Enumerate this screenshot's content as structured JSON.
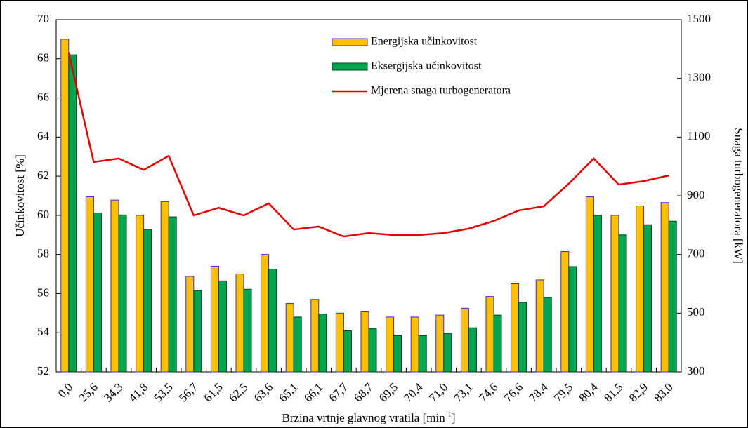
{
  "chart_data": {
    "type": "bar_line",
    "categories": [
      "0,0",
      "25,6",
      "34,3",
      "41,8",
      "53,5",
      "56,7",
      "61,5",
      "62,5",
      "63,6",
      "65,1",
      "66,1",
      "67,7",
      "68,7",
      "69,5",
      "70,4",
      "71,0",
      "73,1",
      "74,6",
      "76,6",
      "78,4",
      "79,5",
      "80,4",
      "81,5",
      "82,9",
      "83,0"
    ],
    "series": [
      {
        "name": "Energijska učinkovitost",
        "type": "bar",
        "color": "#ffc000",
        "edge": "#3333cc",
        "values": [
          69.0,
          60.95,
          60.78,
          60.0,
          60.7,
          56.88,
          57.4,
          57.0,
          58.0,
          55.5,
          55.7,
          55.0,
          55.1,
          54.8,
          54.8,
          54.9,
          55.25,
          55.85,
          56.5,
          56.7,
          58.15,
          60.95,
          60.0,
          60.48,
          60.65
        ]
      },
      {
        "name": "Eksergijska učinkovitost",
        "type": "bar",
        "color": "#00a550",
        "edge": "#004020",
        "values": [
          68.2,
          60.12,
          60.02,
          59.28,
          59.92,
          56.15,
          56.65,
          56.22,
          57.25,
          54.8,
          54.95,
          54.1,
          54.2,
          53.85,
          53.85,
          53.95,
          54.25,
          54.9,
          55.55,
          55.8,
          57.38,
          60.0,
          59.0,
          59.52,
          59.7
        ]
      },
      {
        "name": "Mjerena snaga turbogeneratora",
        "type": "line",
        "axis": "y2",
        "color": "#e00000",
        "values": [
          1388,
          1015,
          1027,
          988,
          1036,
          833,
          859,
          833,
          874,
          785,
          795,
          761,
          773,
          766,
          766,
          773,
          788,
          814,
          850,
          864,
          941,
          1027,
          938,
          950,
          969
        ]
      }
    ],
    "ylabel": "Učinkovitost [%]",
    "y2label": "Snaga turbogeneratora [kW]",
    "xlabel": "Brzina vrtnje glavnog vratila [min",
    "xlabel_sup": "-1",
    "xlabel_end": "]",
    "ylim": [
      52,
      70
    ],
    "yticks": [
      52,
      54,
      56,
      58,
      60,
      62,
      64,
      66,
      68,
      70
    ],
    "y2lim": [
      300,
      1500
    ],
    "y2ticks": [
      300,
      500,
      700,
      900,
      1100,
      1300,
      1500
    ]
  }
}
